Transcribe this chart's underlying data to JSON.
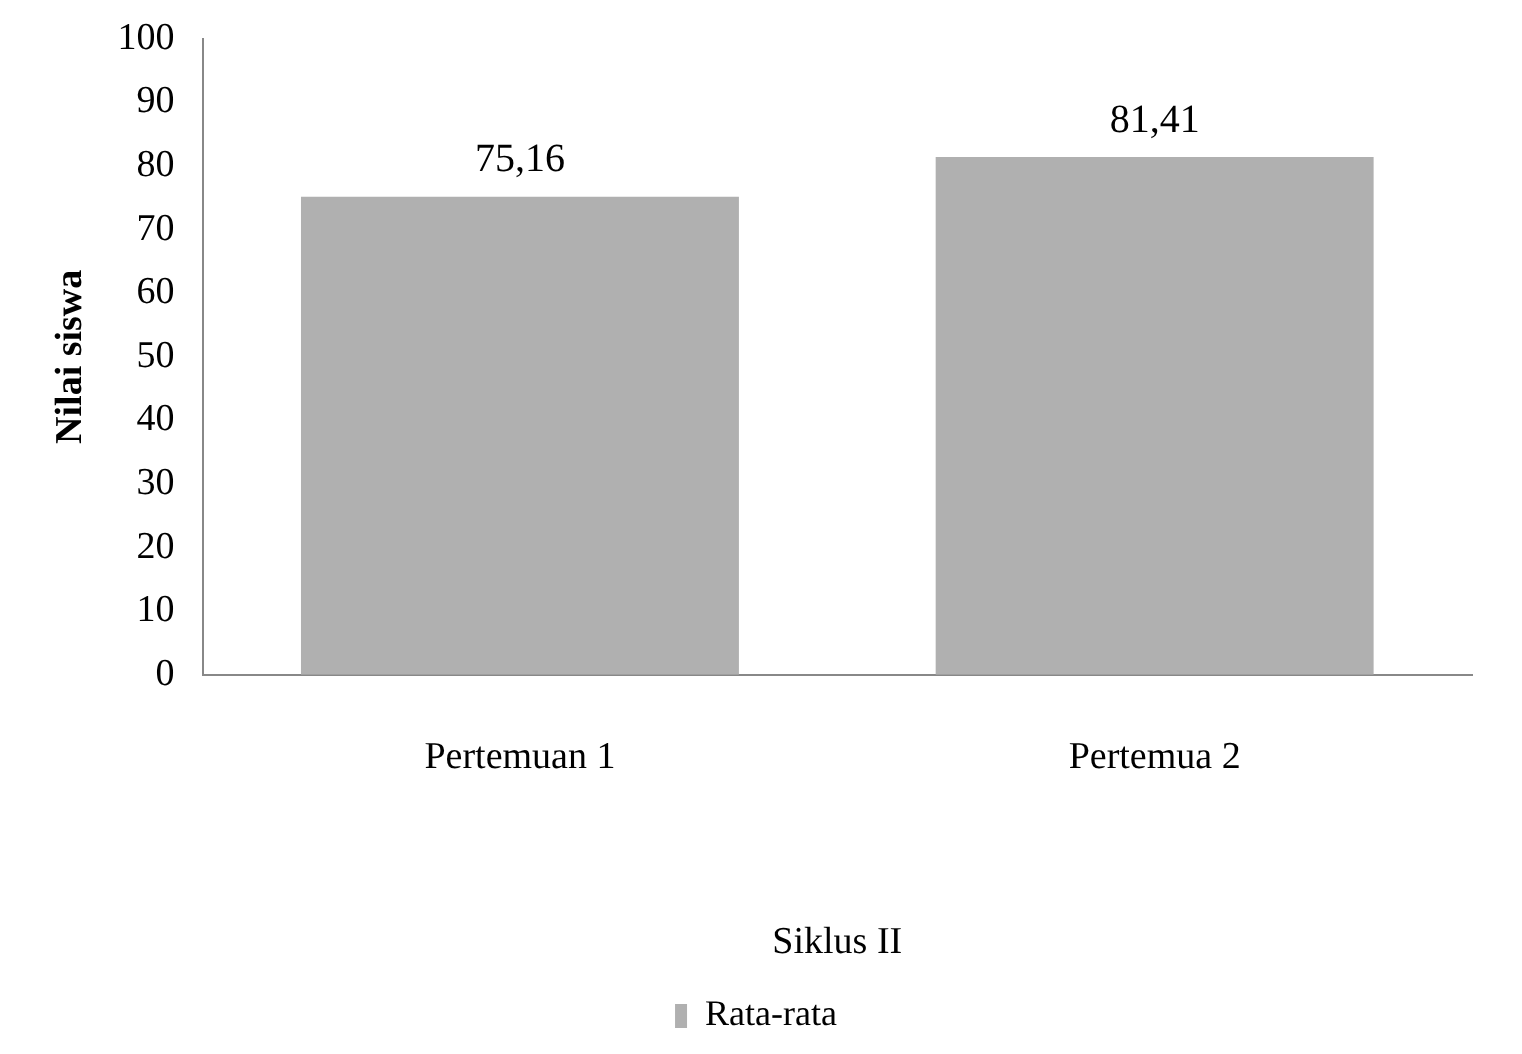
{
  "chart_data": {
    "type": "bar",
    "xlabel": "Siklus II",
    "ylabel": "Nilai siswa",
    "categories": [
      "Pertemuan 1",
      "Pertemua 2"
    ],
    "series": [
      {
        "name": "Rata-rata",
        "color": "#b0b0b0",
        "values": [
          75.16,
          81.41
        ]
      }
    ],
    "value_labels": [
      "75,16",
      "81,41"
    ],
    "ylim": [
      0,
      100
    ],
    "yticks": [
      0,
      10,
      20,
      30,
      40,
      50,
      60,
      70,
      80,
      90,
      100
    ],
    "grid": false,
    "legend": "bottom"
  }
}
